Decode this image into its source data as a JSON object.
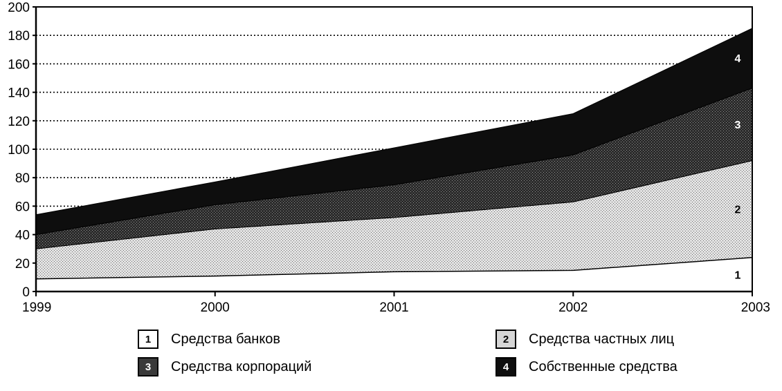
{
  "chart_data": {
    "type": "area",
    "stacked": true,
    "x": [
      "1999",
      "2000",
      "2001",
      "2002",
      "2003"
    ],
    "ylim": [
      0,
      200
    ],
    "yticks": [
      "0",
      "20",
      "40",
      "60",
      "80",
      "100",
      "120",
      "140",
      "160",
      "180",
      "200"
    ],
    "grid": "dotted horizontal",
    "series": [
      {
        "name": "Средства банков",
        "key": "1",
        "values": [
          9,
          11,
          14,
          15,
          24
        ]
      },
      {
        "name": "Средства частных лиц",
        "key": "2",
        "values": [
          21,
          33,
          38,
          48,
          68
        ]
      },
      {
        "name": "Средства корпораций",
        "key": "3",
        "values": [
          10,
          17,
          23,
          33,
          51
        ]
      },
      {
        "name": "Собственные средства",
        "key": "4",
        "values": [
          14,
          16,
          26,
          29,
          42
        ]
      }
    ],
    "legend_placement": "bottom"
  },
  "colors": {
    "s1": "#ffffff",
    "s2": "#d6d6d6",
    "s3": "#3a3a3a",
    "s4": "#0e0e0e"
  }
}
